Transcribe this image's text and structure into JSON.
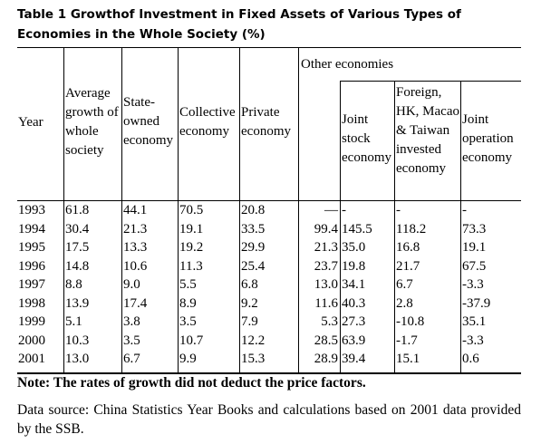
{
  "title": "Table 1 Growthof Investment in Fixed Assets of Various Types of Economies in the Whole Society (%)",
  "headers": {
    "year": "Year",
    "average": "Average growth of whole society",
    "state": "State-owned economy",
    "collective": "Collective economy",
    "private": "Private economy",
    "other_group": "Other economies",
    "joint_stock": "Joint stock economy",
    "foreign": "Foreign, HK, Macao & Taiwan invested economy",
    "joint_operation": "Joint operation economy"
  },
  "rows": [
    [
      "1993",
      "61.8",
      "44.1",
      "70.5",
      "20.8",
      "—",
      "-",
      "-",
      "-"
    ],
    [
      "1994",
      "30.4",
      "21.3",
      "19.1",
      "33.5",
      "99.4",
      "145.5",
      "118.2",
      "73.3"
    ],
    [
      "1995",
      "17.5",
      "13.3",
      "19.2",
      "29.9",
      "21.3",
      "35.0",
      "16.8",
      "19.1"
    ],
    [
      "1996",
      "14.8",
      "10.6",
      "11.3",
      "25.4",
      "23.7",
      "19.8",
      "21.7",
      "67.5"
    ],
    [
      "1997",
      "8.8",
      "9.0",
      "5.5",
      "6.8",
      "13.0",
      "34.1",
      "6.7",
      "-3.3"
    ],
    [
      "1998",
      "13.9",
      "17.4",
      "8.9",
      "9.2",
      "11.6",
      "40.3",
      "2.8",
      "-37.9"
    ],
    [
      "1999",
      "5.1",
      "3.8",
      "3.5",
      "7.9",
      "5.3",
      "27.3",
      "-10.8",
      "35.1"
    ],
    [
      "2000",
      "10.3",
      "3.5",
      "10.7",
      "12.2",
      "28.5",
      "63.9",
      "-1.7",
      "-3.3"
    ],
    [
      "2001",
      "13.0",
      "6.7",
      "9.9",
      "15.3",
      "28.9",
      "39.4",
      "15.1",
      "0.6"
    ]
  ],
  "note": "Note: The rates of growth did not deduct the price factors.",
  "source": "Data source: China Statistics Year Books and calculations based on 2001 data provided by the SSB."
}
